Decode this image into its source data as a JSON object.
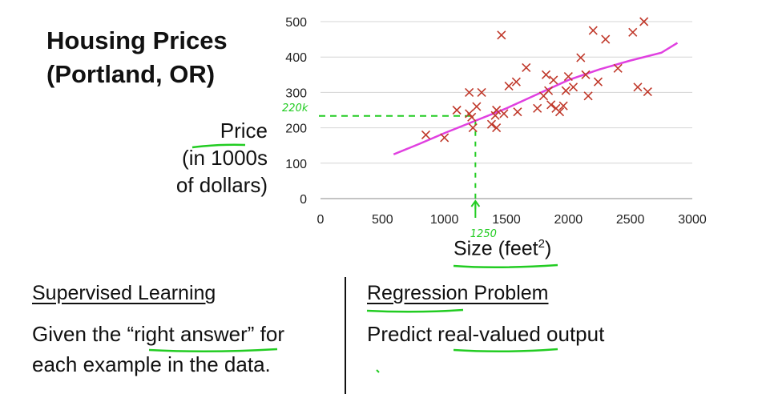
{
  "title_lines": [
    "Housing Prices",
    "(Portland, OR)"
  ],
  "ylabel_lines": [
    "Price",
    "(in 1000s",
    "of dollars)"
  ],
  "xlabel_main": "Size (feet",
  "xlabel_sup": "2",
  "xlabel_close": ")",
  "annotations": {
    "y_marker": "220k",
    "x_marker": "1250"
  },
  "left_section": {
    "title": "Supervised Learning",
    "body_line1_pre": "Given the “",
    "body_line1_em": "right answer",
    "body_line1_post": "” for",
    "body_line2": "each example in the data."
  },
  "right_section": {
    "title": "Regression Problem",
    "body_pre": "Predict ",
    "body_em": "real-valued",
    "body_post": " output"
  },
  "colors": {
    "points": "#c0392b",
    "fit_line": "#e040e0",
    "annotation": "#22cc22",
    "grid": "#d4d4d4"
  },
  "chart_data": {
    "type": "scatter",
    "xlim": [
      0,
      3000
    ],
    "ylim": [
      0,
      500
    ],
    "xticks": [
      0,
      500,
      1000,
      1500,
      2000,
      2500,
      3000
    ],
    "yticks": [
      0,
      100,
      200,
      300,
      400,
      500
    ],
    "grid": "horizontal",
    "points": [
      [
        850,
        180
      ],
      [
        1000,
        172
      ],
      [
        1100,
        250
      ],
      [
        1200,
        300
      ],
      [
        1200,
        240
      ],
      [
        1220,
        230
      ],
      [
        1230,
        200
      ],
      [
        1260,
        260
      ],
      [
        1300,
        300
      ],
      [
        1380,
        210
      ],
      [
        1410,
        235
      ],
      [
        1420,
        200
      ],
      [
        1420,
        250
      ],
      [
        1460,
        462
      ],
      [
        1480,
        240
      ],
      [
        1520,
        318
      ],
      [
        1580,
        330
      ],
      [
        1590,
        245
      ],
      [
        1660,
        370
      ],
      [
        1750,
        255
      ],
      [
        1800,
        290
      ],
      [
        1820,
        350
      ],
      [
        1840,
        305
      ],
      [
        1860,
        265
      ],
      [
        1880,
        335
      ],
      [
        1900,
        255
      ],
      [
        1930,
        245
      ],
      [
        1960,
        262
      ],
      [
        1980,
        305
      ],
      [
        2000,
        345
      ],
      [
        2040,
        315
      ],
      [
        2100,
        398
      ],
      [
        2140,
        350
      ],
      [
        2160,
        290
      ],
      [
        2200,
        475
      ],
      [
        2240,
        330
      ],
      [
        2300,
        450
      ],
      [
        2400,
        368
      ],
      [
        2520,
        470
      ],
      [
        2560,
        315
      ],
      [
        2610,
        500
      ],
      [
        2640,
        302
      ]
    ],
    "fit_line": [
      [
        590,
        125
      ],
      [
        800,
        155
      ],
      [
        1000,
        185
      ],
      [
        1250,
        220
      ],
      [
        1500,
        255
      ],
      [
        1750,
        295
      ],
      [
        2000,
        335
      ],
      [
        2250,
        365
      ],
      [
        2500,
        390
      ],
      [
        2750,
        412
      ],
      [
        2880,
        440
      ]
    ],
    "markers": {
      "y": 220,
      "x": 1250
    }
  }
}
